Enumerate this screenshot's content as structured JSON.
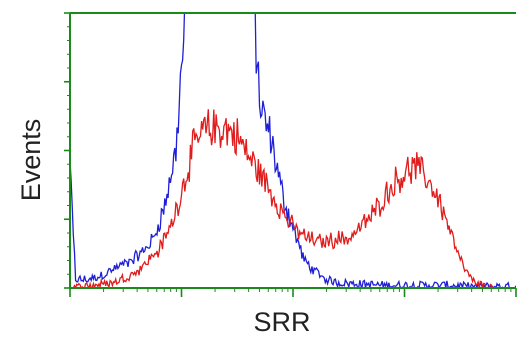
{
  "chart_data": {
    "type": "line",
    "title": "",
    "xlabel": "SRR",
    "ylabel": "Events",
    "grid": false,
    "legend": "none",
    "xscale": "log",
    "xlim": [
      0,
      4
    ],
    "ylim": [
      0,
      100
    ],
    "frame_color": "#1a8a1a",
    "series": [
      {
        "color": "#1f1fd6",
        "x": [
          0.0,
          0.05,
          0.15,
          0.25,
          0.35,
          0.45,
          0.55,
          0.65,
          0.75,
          0.85,
          0.95,
          1.0,
          1.05,
          1.1,
          1.15,
          1.2,
          1.25,
          1.3,
          1.35,
          1.4,
          1.45,
          1.5,
          1.55,
          1.6,
          1.65,
          1.7,
          1.75,
          1.8,
          1.85,
          1.9,
          1.95,
          2.0,
          2.05,
          2.1,
          2.2,
          2.3,
          2.4,
          2.6,
          2.8,
          3.0,
          3.2,
          3.4,
          3.6,
          3.8,
          4.0
        ],
        "y": [
          45,
          3,
          3,
          4,
          6,
          8,
          10,
          13,
          18,
          30,
          50,
          80,
          102,
          102,
          102,
          102,
          102,
          102,
          102,
          102,
          102,
          102,
          102,
          102,
          102,
          68,
          60,
          55,
          45,
          35,
          28,
          22,
          16,
          10,
          6,
          3,
          2,
          1.5,
          1,
          1,
          1,
          1,
          0.5,
          0.5,
          0.5
        ]
      },
      {
        "color": "#e01c1c",
        "x": [
          0.0,
          0.2,
          0.4,
          0.6,
          0.8,
          0.9,
          1.0,
          1.1,
          1.2,
          1.3,
          1.4,
          1.5,
          1.6,
          1.7,
          1.8,
          1.9,
          2.0,
          2.1,
          2.2,
          2.3,
          2.4,
          2.5,
          2.6,
          2.7,
          2.8,
          2.9,
          3.0,
          3.1,
          3.2,
          3.3,
          3.4,
          3.5,
          3.6,
          3.7,
          3.8,
          3.9,
          4.0
        ],
        "y": [
          0,
          1,
          2,
          6,
          14,
          22,
          35,
          50,
          57,
          58,
          58,
          55,
          48,
          42,
          35,
          28,
          22,
          19,
          17,
          17,
          18,
          18,
          22,
          26,
          32,
          38,
          42,
          44,
          40,
          33,
          22,
          10,
          3,
          1,
          0,
          0,
          0
        ]
      }
    ]
  }
}
